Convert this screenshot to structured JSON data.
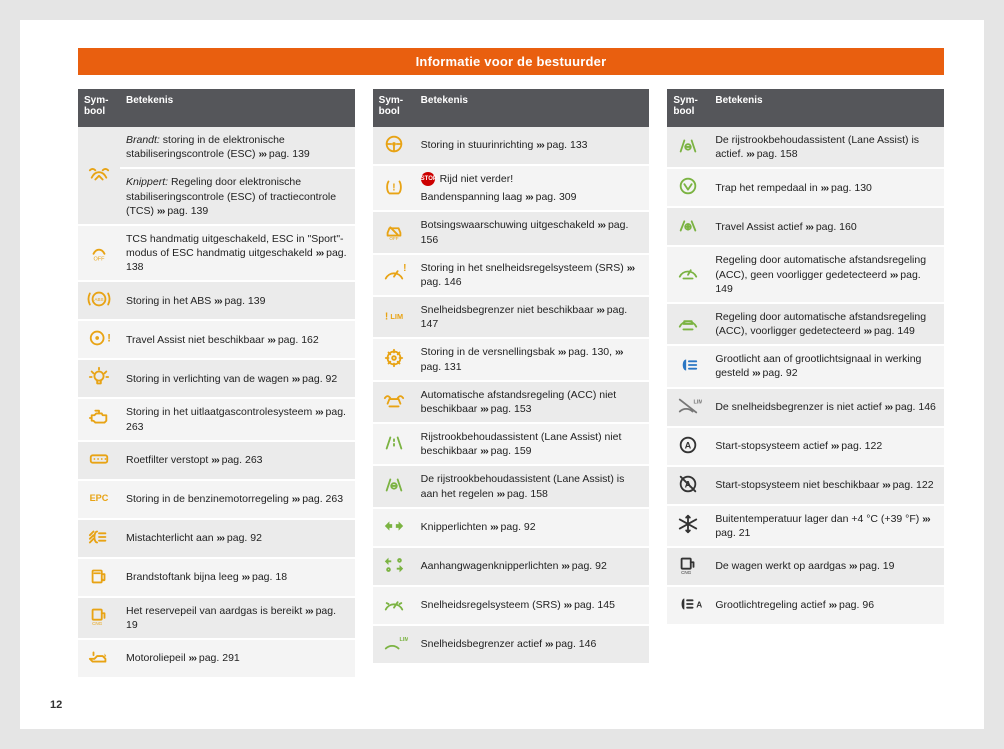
{
  "title": "Informatie voor de bestuurder",
  "pageNumber": "12",
  "headers": {
    "symbol": "Sym-\nbool",
    "meaning": "Betekenis"
  },
  "pager": "›››",
  "colors": {
    "yellow": "#e8a314",
    "green": "#7bb342",
    "blue": "#2a76c4",
    "grey": "#777",
    "black": "#333"
  },
  "col1": [
    {
      "icon": "esc",
      "color": "yellow",
      "rowspan": 2,
      "textPrefix": "Brandt:",
      "italic": true,
      "text": " storing in de elektronische stabiliseringscontrole (ESC) ",
      "page": "pag. 139"
    },
    {
      "textPrefix": "Knippert:",
      "italic": true,
      "text": " Regeling door elektronische stabiliseringscontrole (ESC) of tractiecontrole (TCS) ",
      "page": "pag. 139"
    },
    {
      "icon": "off",
      "color": "yellow",
      "text": "TCS handmatig uitgeschakeld, ESC in \"Sport\"-modus of ESC handmatig uitgeschakeld ",
      "page": "pag. 138"
    },
    {
      "icon": "abs",
      "color": "yellow",
      "text": "Storing in het ABS ",
      "page": "pag. 139"
    },
    {
      "icon": "wheel-ex",
      "color": "yellow",
      "text": "Travel Assist niet beschikbaar ",
      "page": "pag. 162"
    },
    {
      "icon": "bulb",
      "color": "yellow",
      "text": "Storing in verlichting van de wagen ",
      "page": "pag. 92"
    },
    {
      "icon": "engine",
      "color": "yellow",
      "text": "Storing in het uitlaatgascontrolesysteem ",
      "page": "pag. 263"
    },
    {
      "icon": "dpf",
      "color": "yellow",
      "text": "Roetfilter verstopt ",
      "page": "pag. 263"
    },
    {
      "icon": "epc",
      "color": "yellow",
      "text": "Storing in de benzinemotorregeling ",
      "page": "pag. 263"
    },
    {
      "icon": "foglight",
      "color": "yellow",
      "text": "Mistachterlicht aan ",
      "page": "pag. 92"
    },
    {
      "icon": "fuel",
      "color": "yellow",
      "text": "Brandstoftank bijna leeg ",
      "page": "pag. 18"
    },
    {
      "icon": "cng",
      "color": "yellow",
      "text": "Het reservepeil van aardgas is bereikt ",
      "page": "pag. 19"
    },
    {
      "icon": "oil",
      "color": "yellow",
      "text": "Motoroliepeil ",
      "page": "pag. 291"
    }
  ],
  "col2": [
    {
      "icon": "steering",
      "color": "yellow",
      "text": "Storing in stuurinrichting ",
      "page": "pag. 133"
    },
    {
      "icon": "tpms",
      "color": "yellow",
      "stop": true,
      "text2": "Rijd niet verder!",
      "text3": "Bandenspanning laag ",
      "page": "pag. 309",
      "double": true
    },
    {
      "icon": "car-off",
      "color": "yellow",
      "text": "Botsingswaarschuwing uitgeschakeld ",
      "page": "pag. 156"
    },
    {
      "icon": "speed-ex",
      "color": "yellow",
      "text": "Storing in het snelheidsregelsysteem (SRS) ",
      "page": "pag. 146"
    },
    {
      "icon": "lim-ex",
      "color": "yellow",
      "text": "Snelheidsbegrenzer niet beschikbaar ",
      "page": "pag. 147"
    },
    {
      "icon": "gear",
      "color": "yellow",
      "text": "Storing in de versnellingsbak ",
      "page": "pag. 130,",
      "page2": "pag. 131"
    },
    {
      "icon": "acc",
      "color": "yellow",
      "text": "Automatische afstandsregeling (ACC) niet beschikbaar ",
      "page": "pag. 153"
    },
    {
      "icon": "lane",
      "color": "green",
      "text": "Rijstrookbehoudassistent (Lane Assist) niet beschikbaar ",
      "page": "pag. 159"
    },
    {
      "icon": "lane-hands",
      "color": "green",
      "text": "De rijstrookbehoudassistent (Lane Assist) is aan het regelen ",
      "page": "pag. 158"
    },
    {
      "icon": "turn",
      "color": "green",
      "text": "Knipperlichten ",
      "page": "pag. 92"
    },
    {
      "icon": "trailer-turn",
      "color": "green",
      "text": "Aanhangwagenknipperlichten ",
      "page": "pag. 92"
    },
    {
      "icon": "cruise",
      "color": "green",
      "text": "Snelheidsregelsysteem (SRS) ",
      "page": "pag. 145"
    },
    {
      "icon": "lim",
      "color": "green",
      "text": "Snelheidsbegrenzer actief ",
      "page": "pag. 146"
    }
  ],
  "col3": [
    {
      "icon": "lane-hands",
      "color": "green",
      "text": "De rijstrookbehoudassistent (Lane Assist) is actief. ",
      "page": "pag. 158"
    },
    {
      "icon": "pedal",
      "color": "green",
      "text": "Trap het rempedaal in ",
      "page": "pag. 130"
    },
    {
      "icon": "travel",
      "color": "green",
      "text": "Travel Assist actief ",
      "page": "pag. 160"
    },
    {
      "icon": "acc-reg",
      "color": "green",
      "text": "Regeling door automatische afstandsregeling (ACC), geen voorligger gedetecteerd ",
      "page": "pag. 149"
    },
    {
      "icon": "acc-car",
      "color": "green",
      "text": "Regeling door automatische afstandsregeling (ACC), voorligger gedetecteerd ",
      "page": "pag. 149"
    },
    {
      "icon": "highbeam",
      "color": "blue",
      "text": "Grootlicht aan of grootlichtsignaal in werking gesteld ",
      "page": "pag. 92"
    },
    {
      "icon": "lim-off",
      "color": "grey",
      "text": "De snelheidsbegrenzer is niet actief ",
      "page": "pag. 146"
    },
    {
      "icon": "startstop",
      "color": "black",
      "text": "Start-stopsysteem actief ",
      "page": "pag. 122"
    },
    {
      "icon": "startstop-off",
      "color": "black",
      "text": "Start-stopsysteem niet beschikbaar ",
      "page": "pag. 122"
    },
    {
      "icon": "snow",
      "color": "black",
      "text": "Buitentemperatuur lager dan +4 °C (+39 °F) ",
      "page": "pag. 21"
    },
    {
      "icon": "cng2",
      "color": "black",
      "text": "De wagen werkt op aardgas ",
      "page": "pag. 19"
    },
    {
      "icon": "autohighbeam",
      "color": "black",
      "text": "Grootlichtregeling actief ",
      "page": "pag. 96"
    }
  ]
}
